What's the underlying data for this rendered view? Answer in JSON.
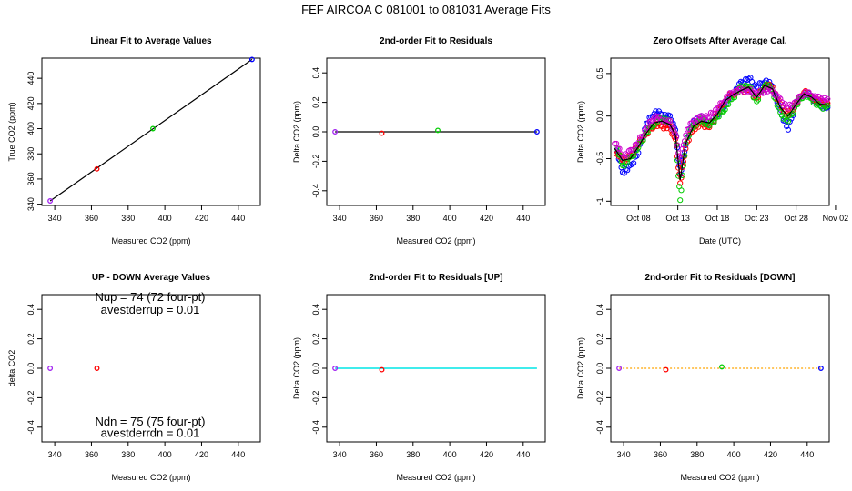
{
  "figure_title": "FEF   AIRCOA C   081001 to 081031   Average Fits",
  "colors": {
    "black": "#000000",
    "red": "#ff0000",
    "green": "#00cc00",
    "blue": "#0000ff",
    "cyan": "#00e5e5",
    "orange": "#ffa500",
    "magenta": "#cc00cc",
    "purple": "#a020f0"
  },
  "chart_data": [
    {
      "id": "p1",
      "type": "scatter",
      "title": "Linear Fit to Average Values",
      "xlabel": "Measured CO2 (ppm)",
      "ylabel": "True CO2 (ppm)",
      "xlim": [
        333,
        452
      ],
      "ylim": [
        339,
        456
      ],
      "xticks": [
        340,
        360,
        380,
        400,
        420,
        440
      ],
      "yticks": [
        340,
        360,
        380,
        400,
        420,
        440
      ],
      "points": [
        {
          "x": 337.5,
          "y": 342.6,
          "color": "purple"
        },
        {
          "x": 363.0,
          "y": 368.0,
          "color": "red"
        },
        {
          "x": 393.5,
          "y": 400.0,
          "color": "green"
        },
        {
          "x": 447.5,
          "y": 455.0,
          "color": "blue"
        }
      ],
      "lines": [
        {
          "x": [
            337.5,
            447.5
          ],
          "y": [
            342.6,
            455.0
          ],
          "color": "black",
          "width": 1.2
        }
      ]
    },
    {
      "id": "p2",
      "type": "scatter",
      "title": "2nd-order Fit to Residuals",
      "xlabel": "Measured CO2 (ppm)",
      "ylabel": "Delta CO2 (ppm)",
      "xlim": [
        333,
        452
      ],
      "ylim": [
        -0.5,
        0.5
      ],
      "xticks": [
        340,
        360,
        380,
        400,
        420,
        440
      ],
      "yticks": [
        -0.4,
        -0.2,
        0.0,
        0.2,
        0.4
      ],
      "points": [
        {
          "x": 337.5,
          "y": 0.0,
          "color": "purple"
        },
        {
          "x": 363.0,
          "y": -0.01,
          "color": "red"
        },
        {
          "x": 393.5,
          "y": 0.01,
          "color": "green"
        },
        {
          "x": 447.5,
          "y": 0.0,
          "color": "blue"
        }
      ],
      "lines": [
        {
          "x": [
            337.5,
            447.5
          ],
          "y": [
            0.0,
            0.0
          ],
          "color": "black",
          "width": 1.2
        }
      ]
    },
    {
      "id": "p3",
      "type": "scatter",
      "title": "Zero Offsets After Average Cal.",
      "xlabel": "Date (UTC)",
      "ylabel": "Delta CO2 (ppm)",
      "xlim": [
        4.5,
        32.2
      ],
      "ylim": [
        -1.05,
        0.68
      ],
      "xticks": [
        8,
        13,
        18,
        23,
        28,
        33
      ],
      "xtick_labels": [
        "Oct 08",
        "Oct 13",
        "Oct 18",
        "Oct 23",
        "Oct 28",
        "Nov 02"
      ],
      "yticks": [
        -1.0,
        -0.5,
        0.0,
        0.5
      ],
      "series": [
        {
          "name": "blue",
          "color": "blue",
          "x": [
            5.2,
            6.0,
            7.0,
            8.0,
            9.0,
            10.0,
            11.0,
            12.0,
            12.7,
            13.3,
            14.0,
            15.0,
            16.0,
            17.0,
            18.0,
            19.0,
            20.0,
            21.0,
            22.0,
            23.0,
            24.0,
            25.0,
            26.0,
            27.0,
            28.0,
            29.0,
            30.0,
            31.0,
            32.0
          ],
          "y": [
            -0.38,
            -0.66,
            -0.6,
            -0.42,
            -0.1,
            0.05,
            0.02,
            -0.02,
            -0.15,
            -0.7,
            -0.32,
            -0.06,
            -0.02,
            -0.1,
            0.0,
            0.15,
            0.26,
            0.38,
            0.45,
            0.33,
            0.42,
            0.35,
            0.05,
            -0.15,
            0.15,
            0.28,
            0.22,
            0.12,
            0.1
          ]
        },
        {
          "name": "red",
          "color": "red",
          "x": [
            5.2,
            6.0,
            7.0,
            8.0,
            9.0,
            10.0,
            11.0,
            12.0,
            12.7,
            13.3,
            14.0,
            15.0,
            16.0,
            17.0,
            18.0,
            19.0,
            20.0,
            21.0,
            22.0,
            23.0,
            24.0,
            25.0,
            26.0,
            27.0,
            28.0,
            29.0,
            30.0,
            31.0,
            32.0
          ],
          "y": [
            -0.42,
            -0.52,
            -0.48,
            -0.32,
            -0.22,
            -0.1,
            -0.12,
            -0.14,
            -0.26,
            -0.8,
            -0.36,
            -0.14,
            -0.1,
            -0.12,
            0.02,
            0.2,
            0.26,
            0.3,
            0.32,
            0.2,
            0.36,
            0.34,
            0.12,
            0.02,
            0.14,
            0.3,
            0.22,
            0.16,
            0.15
          ]
        },
        {
          "name": "green",
          "color": "green",
          "x": [
            5.2,
            6.0,
            7.0,
            8.0,
            9.0,
            10.0,
            11.0,
            12.0,
            12.7,
            13.3,
            14.0,
            15.0,
            16.0,
            17.0,
            18.0,
            19.0,
            20.0,
            21.0,
            22.0,
            23.0,
            24.0,
            25.0,
            26.0,
            27.0,
            28.0,
            29.0,
            30.0,
            31.0,
            32.0
          ],
          "y": [
            -0.35,
            -0.58,
            -0.5,
            -0.36,
            -0.2,
            -0.08,
            -0.02,
            -0.08,
            -0.2,
            -1.0,
            -0.3,
            -0.1,
            -0.05,
            -0.1,
            -0.02,
            0.1,
            0.22,
            0.33,
            0.36,
            0.16,
            0.38,
            0.3,
            0.02,
            -0.05,
            0.12,
            0.26,
            0.2,
            0.1,
            0.12
          ]
        },
        {
          "name": "magenta",
          "color": "magenta",
          "x": [
            5.0,
            6.0,
            7.0,
            8.0,
            9.0,
            10.0,
            11.0,
            12.0,
            12.7,
            13.3,
            14.0,
            15.0,
            16.0,
            17.0,
            18.0,
            19.0,
            20.0,
            21.0,
            22.0,
            23.0,
            24.0,
            25.0,
            26.0,
            27.0,
            28.0,
            29.0,
            30.0,
            31.0,
            32.0
          ],
          "y": [
            -0.3,
            -0.48,
            -0.42,
            -0.3,
            -0.15,
            0.0,
            -0.05,
            -0.08,
            -0.2,
            -0.55,
            -0.2,
            -0.05,
            -0.02,
            0.0,
            0.08,
            0.2,
            0.28,
            0.3,
            0.3,
            0.26,
            0.3,
            0.3,
            0.18,
            0.1,
            0.16,
            0.28,
            0.24,
            0.2,
            0.2
          ]
        }
      ],
      "mean_line": {
        "color": "black",
        "x": [
          5.0,
          6.0,
          7.0,
          8.0,
          9.0,
          10.0,
          11.0,
          12.0,
          12.7,
          13.3,
          14.0,
          15.0,
          16.0,
          17.0,
          18.0,
          19.0,
          20.0,
          21.0,
          22.0,
          23.0,
          24.0,
          25.0,
          26.0,
          27.0,
          28.0,
          29.0,
          30.0,
          31.0,
          32.0
        ],
        "y": [
          -0.38,
          -0.52,
          -0.5,
          -0.36,
          -0.2,
          -0.08,
          -0.06,
          -0.1,
          -0.22,
          -0.75,
          -0.32,
          -0.12,
          -0.06,
          -0.08,
          0.02,
          0.18,
          0.25,
          0.3,
          0.34,
          0.22,
          0.36,
          0.32,
          0.1,
          0.0,
          0.14,
          0.26,
          0.22,
          0.14,
          0.13
        ]
      }
    },
    {
      "id": "p4",
      "type": "scatter",
      "title": "UP - DOWN Average Values",
      "xlabel": "Measured CO2 (ppm)",
      "ylabel": "delta CO2",
      "xlim": [
        333,
        452
      ],
      "ylim": [
        -0.5,
        0.5
      ],
      "xticks": [
        340,
        360,
        380,
        400,
        420,
        440
      ],
      "yticks": [
        -0.4,
        -0.2,
        0.0,
        0.2,
        0.4
      ],
      "points": [
        {
          "x": 337.5,
          "y": 0.0,
          "color": "purple"
        },
        {
          "x": 363.0,
          "y": 0.0,
          "color": "red"
        }
      ],
      "annotations": [
        {
          "text": "Nup = 74 (72 four-pt)",
          "x": 392,
          "y": 0.456
        },
        {
          "text": "avestderrup =  0.01",
          "x": 392,
          "y": 0.37
        },
        {
          "text": "Ndn = 75 (75 four-pt)",
          "x": 392,
          "y": -0.39
        },
        {
          "text": "avestderrdn =  0.01",
          "x": 392,
          "y": -0.465
        }
      ]
    },
    {
      "id": "p5",
      "type": "scatter",
      "title": "2nd-order Fit to Residuals [UP]",
      "xlabel": "Measured CO2 (ppm)",
      "ylabel": "Delta CO2 (ppm)",
      "xlim": [
        333,
        452
      ],
      "ylim": [
        -0.5,
        0.5
      ],
      "xticks": [
        340,
        360,
        380,
        400,
        420,
        440
      ],
      "yticks": [
        -0.4,
        -0.2,
        0.0,
        0.2,
        0.4
      ],
      "points": [
        {
          "x": 337.5,
          "y": 0.0,
          "color": "purple"
        },
        {
          "x": 363.0,
          "y": -0.01,
          "color": "red"
        }
      ],
      "lines": [
        {
          "x": [
            337.5,
            447.5
          ],
          "y": [
            0.0,
            0.0
          ],
          "color": "cyan",
          "width": 1.5
        }
      ]
    },
    {
      "id": "p6",
      "type": "scatter",
      "title": "2nd-order Fit to Residuals [DOWN]",
      "xlabel": "Measured CO2 (ppm)",
      "ylabel": "Delta CO2 (ppm)",
      "xlim": [
        333,
        452
      ],
      "ylim": [
        -0.5,
        0.5
      ],
      "xticks": [
        340,
        360,
        380,
        400,
        420,
        440
      ],
      "yticks": [
        -0.4,
        -0.2,
        0.0,
        0.2,
        0.4
      ],
      "points": [
        {
          "x": 337.5,
          "y": 0.0,
          "color": "purple"
        },
        {
          "x": 363.0,
          "y": -0.01,
          "color": "red"
        },
        {
          "x": 393.5,
          "y": 0.01,
          "color": "green"
        },
        {
          "x": 447.5,
          "y": 0.0,
          "color": "blue"
        }
      ],
      "lines": [
        {
          "x": [
            337.5,
            447.5
          ],
          "y": [
            0.0,
            0.0
          ],
          "color": "orange",
          "width": 1.2,
          "dash": true
        }
      ]
    }
  ]
}
